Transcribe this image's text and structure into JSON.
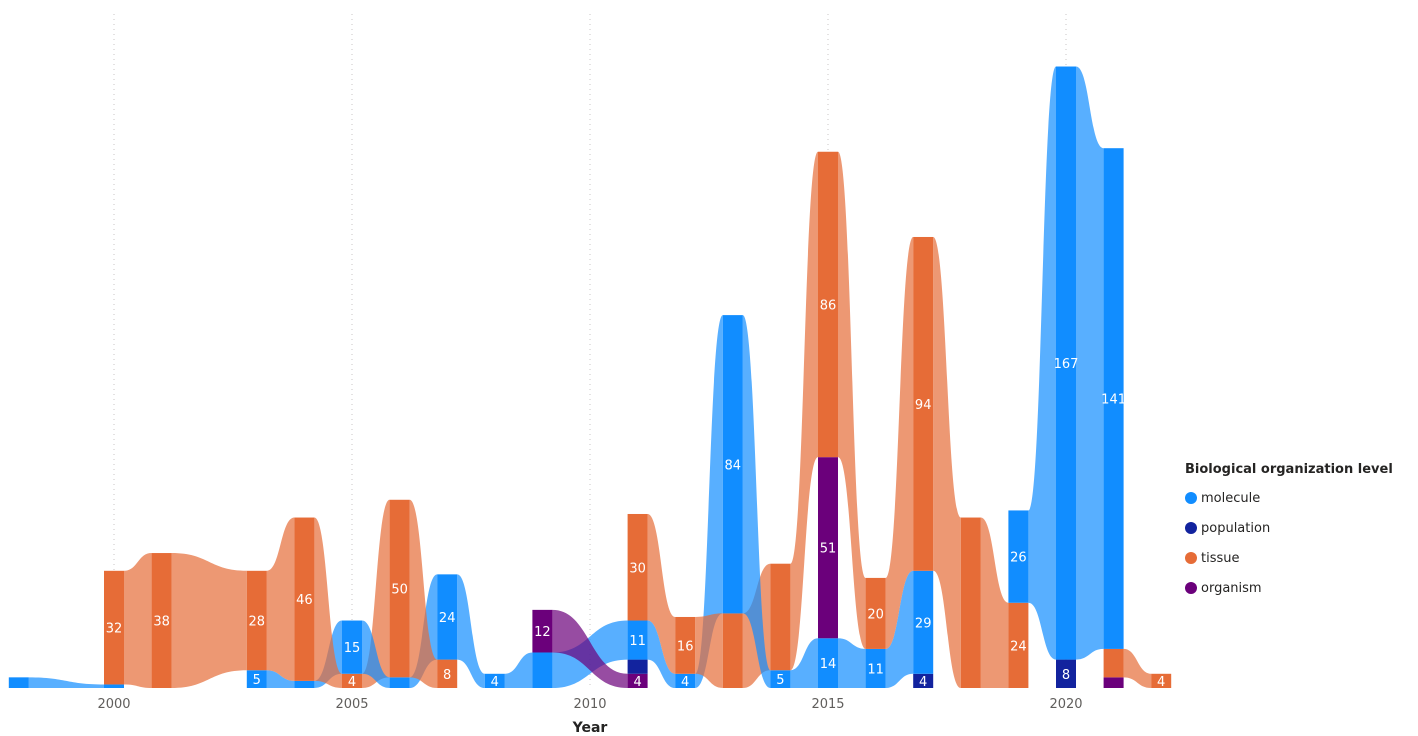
{
  "chart_data": {
    "type": "ribbon",
    "xlabel": "Year",
    "ylabel": "",
    "ylim": [
      0,
      185
    ],
    "x_ticks": [
      2000,
      2005,
      2010,
      2015,
      2020
    ],
    "grid": "vertical dotted at labeled years",
    "legend": {
      "title": "Biological organization level",
      "position": "right"
    },
    "series": [
      {
        "name": "molecule",
        "color": "#118dff"
      },
      {
        "name": "population",
        "color": "#12239e"
      },
      {
        "name": "tissue",
        "color": "#e66c37"
      },
      {
        "name": "organism",
        "color": "#6b007b"
      }
    ],
    "years": [
      {
        "year": 1998,
        "stack": [
          {
            "series": "molecule",
            "value": 3
          }
        ]
      },
      {
        "year": 2000,
        "stack": [
          {
            "series": "molecule",
            "value": 1
          },
          {
            "series": "tissue",
            "value": 32,
            "label": "32"
          }
        ]
      },
      {
        "year": 2001,
        "stack": [
          {
            "series": "tissue",
            "value": 38,
            "label": "38"
          }
        ]
      },
      {
        "year": 2003,
        "stack": [
          {
            "series": "molecule",
            "value": 5,
            "label": "5"
          },
          {
            "series": "tissue",
            "value": 28,
            "label": "28"
          }
        ]
      },
      {
        "year": 2004,
        "stack": [
          {
            "series": "molecule",
            "value": 2
          },
          {
            "series": "tissue",
            "value": 46,
            "label": "46"
          }
        ]
      },
      {
        "year": 2005,
        "stack": [
          {
            "series": "tissue",
            "value": 4,
            "label": "4"
          },
          {
            "series": "molecule",
            "value": 15,
            "label": "15"
          }
        ]
      },
      {
        "year": 2006,
        "stack": [
          {
            "series": "molecule",
            "value": 3
          },
          {
            "series": "tissue",
            "value": 50,
            "label": "50"
          }
        ]
      },
      {
        "year": 2007,
        "stack": [
          {
            "series": "tissue",
            "value": 8,
            "label": "8"
          },
          {
            "series": "molecule",
            "value": 24,
            "label": "24"
          }
        ]
      },
      {
        "year": 2008,
        "stack": [
          {
            "series": "molecule",
            "value": 4,
            "label": "4"
          }
        ]
      },
      {
        "year": 2009,
        "stack": [
          {
            "series": "molecule",
            "value": 10
          },
          {
            "series": "organism",
            "value": 12,
            "label": "12"
          }
        ]
      },
      {
        "year": 2011,
        "stack": [
          {
            "series": "organism",
            "value": 4,
            "label": "4"
          },
          {
            "series": "population",
            "value": 4
          },
          {
            "series": "molecule",
            "value": 11,
            "label": "11"
          },
          {
            "series": "tissue",
            "value": 30,
            "label": "30"
          }
        ]
      },
      {
        "year": 2012,
        "stack": [
          {
            "series": "molecule",
            "value": 4,
            "label": "4"
          },
          {
            "series": "tissue",
            "value": 16,
            "label": "16"
          }
        ]
      },
      {
        "year": 2013,
        "stack": [
          {
            "series": "tissue",
            "value": 21
          },
          {
            "series": "molecule",
            "value": 84,
            "label": "84"
          }
        ]
      },
      {
        "year": 2014,
        "stack": [
          {
            "series": "molecule",
            "value": 5,
            "label": "5"
          },
          {
            "series": "tissue",
            "value": 30
          }
        ]
      },
      {
        "year": 2015,
        "stack": [
          {
            "series": "molecule",
            "value": 14,
            "label": "14"
          },
          {
            "series": "organism",
            "value": 51,
            "label": "51"
          },
          {
            "series": "tissue",
            "value": 86,
            "label": "86"
          }
        ]
      },
      {
        "year": 2016,
        "stack": [
          {
            "series": "molecule",
            "value": 11,
            "label": "11"
          },
          {
            "series": "tissue",
            "value": 20,
            "label": "20"
          }
        ]
      },
      {
        "year": 2017,
        "stack": [
          {
            "series": "population",
            "value": 4,
            "label": "4"
          },
          {
            "series": "molecule",
            "value": 29,
            "label": "29"
          },
          {
            "series": "tissue",
            "value": 94,
            "label": "94"
          }
        ]
      },
      {
        "year": 2018,
        "stack": [
          {
            "series": "tissue",
            "value": 48
          }
        ]
      },
      {
        "year": 2019,
        "stack": [
          {
            "series": "tissue",
            "value": 24,
            "label": "24"
          },
          {
            "series": "molecule",
            "value": 26,
            "label": "26"
          }
        ]
      },
      {
        "year": 2020,
        "stack": [
          {
            "series": "population",
            "value": 8,
            "label": "8"
          },
          {
            "series": "molecule",
            "value": 167,
            "label": "167"
          }
        ]
      },
      {
        "year": 2021,
        "stack": [
          {
            "series": "organism",
            "value": 3
          },
          {
            "series": "tissue",
            "value": 8
          },
          {
            "series": "molecule",
            "value": 141,
            "label": "141"
          }
        ]
      },
      {
        "year": 2022,
        "stack": [
          {
            "series": "tissue",
            "value": 4,
            "label": "4"
          }
        ]
      }
    ]
  }
}
